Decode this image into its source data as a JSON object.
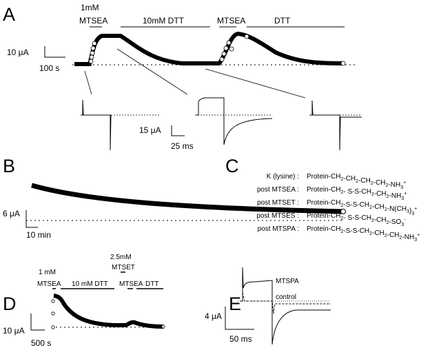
{
  "panels": {
    "A": {
      "letter": "A",
      "conc1": "1mM",
      "drug1": "MTSEA",
      "drug2": "10mM DTT",
      "drug3": "MTSEA",
      "drug4": "DTT",
      "scale_y": "10 μA",
      "scale_x": "100 s",
      "inset_scale_y": "15 μA",
      "inset_scale_x": "25 ms"
    },
    "B": {
      "letter": "B",
      "scale_y": "6 μA",
      "scale_x": "10 min"
    },
    "C": {
      "letter": "C",
      "rows": [
        {
          "label": "K (lysine) :",
          "formula": [
            [
              "Protein-CH",
              ""
            ],
            [
              "2",
              "sub"
            ],
            [
              "-CH",
              ""
            ],
            [
              "2",
              "sub"
            ],
            [
              "-CH",
              ""
            ],
            [
              "2",
              "sub"
            ],
            [
              "-CH",
              ""
            ],
            [
              "2",
              "sub"
            ],
            [
              "-NH",
              ""
            ],
            [
              "3",
              "sub"
            ],
            [
              "+",
              "sup"
            ]
          ]
        },
        {
          "label": "post MTSEA  :",
          "formula": [
            [
              "Protein-CH",
              ""
            ],
            [
              "2",
              "sub"
            ],
            [
              "- S-S-CH",
              ""
            ],
            [
              "2",
              "sub"
            ],
            [
              "-CH",
              ""
            ],
            [
              "2",
              "sub"
            ],
            [
              "-NH",
              ""
            ],
            [
              "3",
              "sub"
            ],
            [
              "+",
              "sup"
            ]
          ]
        },
        {
          "label": "post MTSET  :",
          "formula": [
            [
              "Protein-CH",
              ""
            ],
            [
              "2",
              "sub"
            ],
            [
              "-S-S-CH",
              ""
            ],
            [
              "2",
              "sub"
            ],
            [
              "-CH",
              ""
            ],
            [
              "2",
              "sub"
            ],
            [
              "-N(CH",
              ""
            ],
            [
              "3",
              "sub"
            ],
            [
              ")",
              ""
            ],
            [
              "3",
              "sub"
            ],
            [
              "+",
              "sup"
            ]
          ]
        },
        {
          "label": "post MTSES  :",
          "formula": [
            [
              "Protein-CH",
              ""
            ],
            [
              "2",
              "sub"
            ],
            [
              "- S-S-CH",
              ""
            ],
            [
              "2",
              "sub"
            ],
            [
              "-CH",
              ""
            ],
            [
              "2",
              "sub"
            ],
            [
              "-SO",
              ""
            ],
            [
              "3",
              "sub"
            ],
            [
              "-",
              "sup"
            ]
          ]
        },
        {
          "label": "post MTSPA  :",
          "formula": [
            [
              "Protein-CH",
              ""
            ],
            [
              "2",
              "sub"
            ],
            [
              "-S-S-CH",
              ""
            ],
            [
              "2",
              "sub"
            ],
            [
              "-CH",
              ""
            ],
            [
              "2",
              "sub"
            ],
            [
              "-CH",
              ""
            ],
            [
              "2",
              "sub"
            ],
            [
              "-NH",
              ""
            ],
            [
              "3",
              "sub"
            ],
            [
              "+",
              "sup"
            ]
          ]
        }
      ]
    },
    "D": {
      "letter": "D",
      "conc1": "1 mM",
      "drug1": "MTSEA",
      "drug2": "10 mM DTT",
      "conc3": "2.5mM",
      "drug3": "MTSET",
      "drug4": "MTSEA",
      "drug5": "DTT",
      "scale_y": "10 μA",
      "scale_x": "500 s"
    },
    "E": {
      "letter": "E",
      "trace1": "MTSPA",
      "trace2": "control",
      "scale_y": "4 μA",
      "scale_x": "50 ms"
    }
  }
}
